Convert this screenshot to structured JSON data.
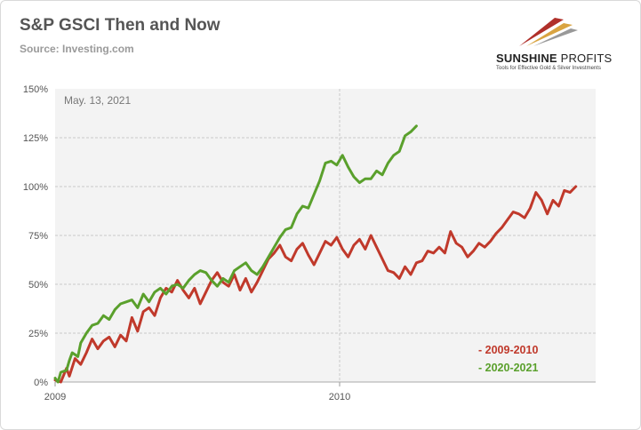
{
  "header": {
    "title": "S&P GSCI Then and Now",
    "subtitle": "Source: Investing.com"
  },
  "logo": {
    "name_bold": "SUNSHINE",
    "name_light": " PROFITS",
    "tagline": "Tools for Effective Gold & Silver Investments"
  },
  "chart_data": {
    "type": "line",
    "annotation": "May. 13, 2021",
    "xlim": [
      2009,
      2010.9
    ],
    "ylim": [
      0,
      150
    ],
    "x_ticks": [
      {
        "value": 2009,
        "label": "2009"
      },
      {
        "value": 2010,
        "label": "2010"
      }
    ],
    "y_ticks": [
      {
        "value": 0,
        "label": "0%"
      },
      {
        "value": 25,
        "label": "25%"
      },
      {
        "value": 50,
        "label": "50%"
      },
      {
        "value": 75,
        "label": "75%"
      },
      {
        "value": 100,
        "label": "100%"
      },
      {
        "value": 125,
        "label": "125%"
      },
      {
        "value": 150,
        "label": "150%"
      }
    ],
    "grid": true,
    "legend_position": "bottom-right",
    "series": [
      {
        "name": "- 2009-2010",
        "color": "#c0392b",
        "points": [
          [
            2009.0,
            1
          ],
          [
            2009.02,
            0
          ],
          [
            2009.04,
            7
          ],
          [
            2009.05,
            3
          ],
          [
            2009.07,
            12
          ],
          [
            2009.09,
            9
          ],
          [
            2009.11,
            15
          ],
          [
            2009.13,
            22
          ],
          [
            2009.15,
            17
          ],
          [
            2009.17,
            21
          ],
          [
            2009.19,
            23
          ],
          [
            2009.21,
            18
          ],
          [
            2009.23,
            24
          ],
          [
            2009.25,
            21
          ],
          [
            2009.27,
            33
          ],
          [
            2009.29,
            26
          ],
          [
            2009.31,
            36
          ],
          [
            2009.33,
            38
          ],
          [
            2009.35,
            34
          ],
          [
            2009.37,
            43
          ],
          [
            2009.39,
            48
          ],
          [
            2009.41,
            46
          ],
          [
            2009.43,
            52
          ],
          [
            2009.45,
            47
          ],
          [
            2009.47,
            43
          ],
          [
            2009.49,
            48
          ],
          [
            2009.51,
            40
          ],
          [
            2009.53,
            46
          ],
          [
            2009.55,
            52
          ],
          [
            2009.57,
            56
          ],
          [
            2009.59,
            51
          ],
          [
            2009.61,
            49
          ],
          [
            2009.63,
            55
          ],
          [
            2009.65,
            47
          ],
          [
            2009.67,
            53
          ],
          [
            2009.69,
            46
          ],
          [
            2009.71,
            51
          ],
          [
            2009.73,
            57
          ],
          [
            2009.75,
            63
          ],
          [
            2009.77,
            66
          ],
          [
            2009.79,
            70
          ],
          [
            2009.81,
            64
          ],
          [
            2009.83,
            62
          ],
          [
            2009.85,
            68
          ],
          [
            2009.87,
            71
          ],
          [
            2009.89,
            65
          ],
          [
            2009.91,
            60
          ],
          [
            2009.93,
            66
          ],
          [
            2009.95,
            72
          ],
          [
            2009.97,
            70
          ],
          [
            2009.99,
            74
          ],
          [
            2010.01,
            68
          ],
          [
            2010.03,
            64
          ],
          [
            2010.05,
            70
          ],
          [
            2010.07,
            73
          ],
          [
            2010.09,
            68
          ],
          [
            2010.11,
            75
          ],
          [
            2010.13,
            69
          ],
          [
            2010.15,
            63
          ],
          [
            2010.17,
            57
          ],
          [
            2010.19,
            56
          ],
          [
            2010.21,
            53
          ],
          [
            2010.23,
            59
          ],
          [
            2010.25,
            55
          ],
          [
            2010.27,
            61
          ],
          [
            2010.29,
            62
          ],
          [
            2010.31,
            67
          ],
          [
            2010.33,
            66
          ],
          [
            2010.35,
            69
          ],
          [
            2010.37,
            66
          ],
          [
            2010.39,
            77
          ],
          [
            2010.41,
            71
          ],
          [
            2010.43,
            69
          ],
          [
            2010.45,
            64
          ],
          [
            2010.47,
            67
          ],
          [
            2010.49,
            71
          ],
          [
            2010.51,
            69
          ],
          [
            2010.53,
            72
          ],
          [
            2010.55,
            76
          ],
          [
            2010.57,
            79
          ],
          [
            2010.59,
            83
          ],
          [
            2010.61,
            87
          ],
          [
            2010.63,
            86
          ],
          [
            2010.65,
            84
          ],
          [
            2010.67,
            89
          ],
          [
            2010.69,
            97
          ],
          [
            2010.71,
            93
          ],
          [
            2010.73,
            86
          ],
          [
            2010.75,
            93
          ],
          [
            2010.77,
            90
          ],
          [
            2010.79,
            98
          ],
          [
            2010.81,
            97
          ],
          [
            2010.83,
            100
          ]
        ]
      },
      {
        "name": "- 2020-2021",
        "color": "#5aa02c",
        "points": [
          [
            2009.0,
            2
          ],
          [
            2009.01,
            0
          ],
          [
            2009.02,
            5
          ],
          [
            2009.04,
            6
          ],
          [
            2009.05,
            11
          ],
          [
            2009.06,
            15
          ],
          [
            2009.08,
            13
          ],
          [
            2009.09,
            20
          ],
          [
            2009.11,
            25
          ],
          [
            2009.13,
            29
          ],
          [
            2009.15,
            30
          ],
          [
            2009.17,
            34
          ],
          [
            2009.19,
            32
          ],
          [
            2009.21,
            37
          ],
          [
            2009.23,
            40
          ],
          [
            2009.25,
            41
          ],
          [
            2009.27,
            42
          ],
          [
            2009.29,
            38
          ],
          [
            2009.31,
            45
          ],
          [
            2009.33,
            41
          ],
          [
            2009.35,
            46
          ],
          [
            2009.37,
            48
          ],
          [
            2009.39,
            45
          ],
          [
            2009.41,
            49
          ],
          [
            2009.43,
            50
          ],
          [
            2009.45,
            48
          ],
          [
            2009.47,
            52
          ],
          [
            2009.49,
            55
          ],
          [
            2009.51,
            57
          ],
          [
            2009.53,
            56
          ],
          [
            2009.55,
            52
          ],
          [
            2009.57,
            49
          ],
          [
            2009.59,
            53
          ],
          [
            2009.61,
            51
          ],
          [
            2009.63,
            57
          ],
          [
            2009.65,
            59
          ],
          [
            2009.67,
            61
          ],
          [
            2009.69,
            57
          ],
          [
            2009.71,
            55
          ],
          [
            2009.73,
            59
          ],
          [
            2009.75,
            64
          ],
          [
            2009.77,
            69
          ],
          [
            2009.79,
            74
          ],
          [
            2009.81,
            78
          ],
          [
            2009.83,
            79
          ],
          [
            2009.85,
            86
          ],
          [
            2009.87,
            90
          ],
          [
            2009.89,
            89
          ],
          [
            2009.91,
            96
          ],
          [
            2009.93,
            103
          ],
          [
            2009.95,
            112
          ],
          [
            2009.97,
            113
          ],
          [
            2009.99,
            111
          ],
          [
            2010.01,
            116
          ],
          [
            2010.03,
            110
          ],
          [
            2010.05,
            105
          ],
          [
            2010.07,
            102
          ],
          [
            2010.09,
            104
          ],
          [
            2010.11,
            104
          ],
          [
            2010.13,
            108
          ],
          [
            2010.15,
            106
          ],
          [
            2010.17,
            112
          ],
          [
            2010.19,
            116
          ],
          [
            2010.21,
            118
          ],
          [
            2010.23,
            126
          ],
          [
            2010.25,
            128
          ],
          [
            2010.27,
            131
          ]
        ]
      }
    ]
  }
}
